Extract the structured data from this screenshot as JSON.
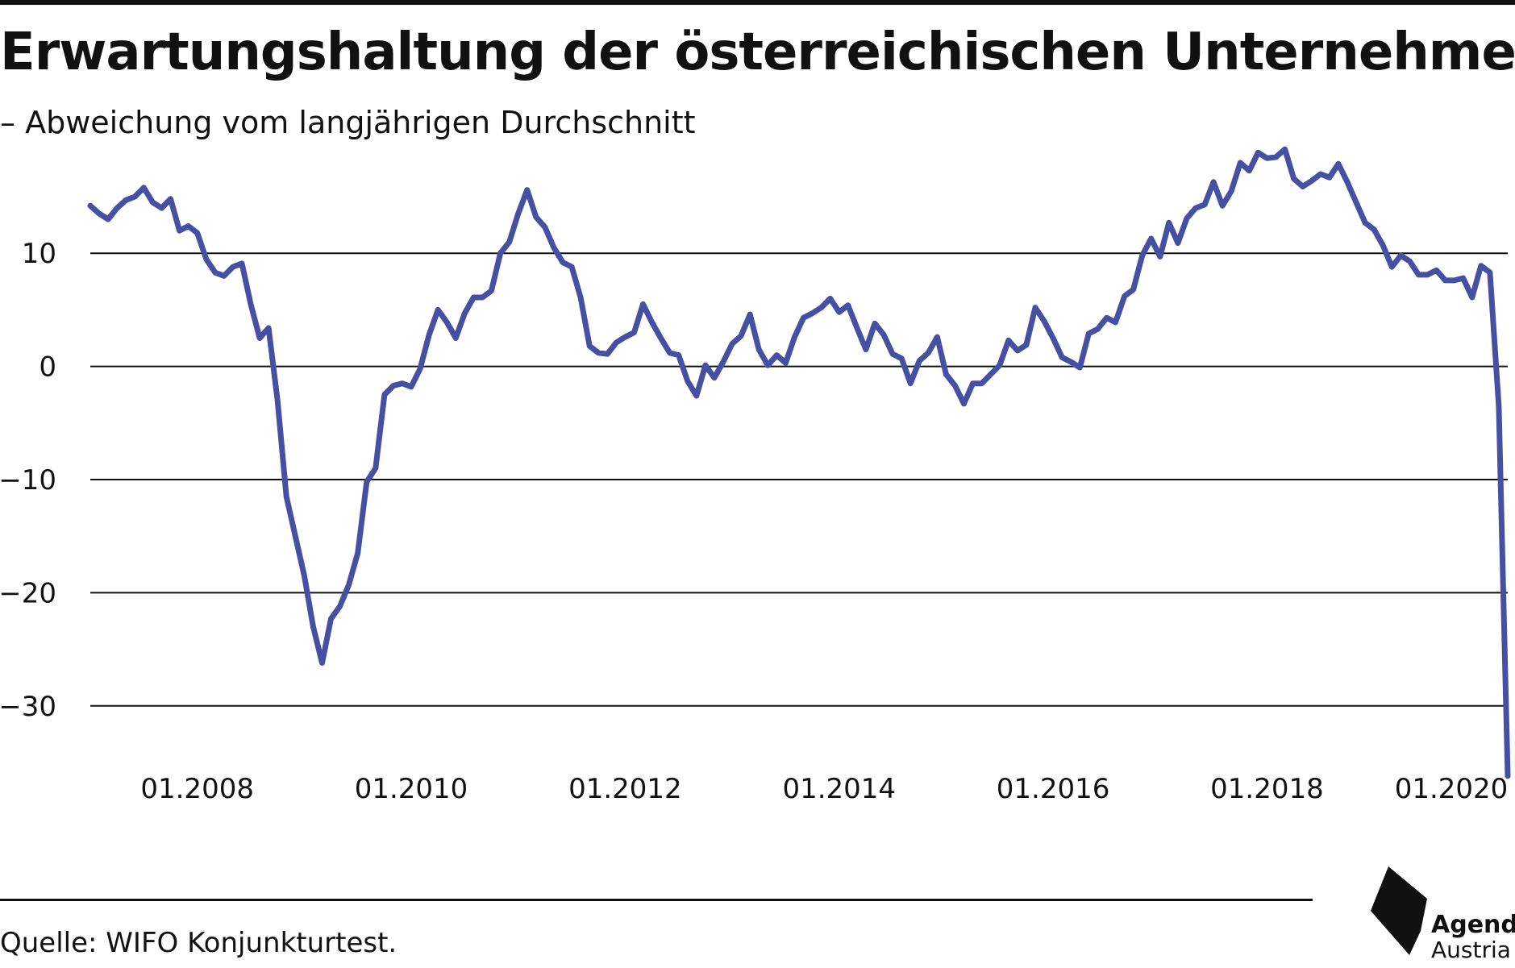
{
  "header": {
    "title": "Erwartungshaltung der österreichischen Unternehmen",
    "subtitle": "– Abweichung vom langjährigen Durchschnitt"
  },
  "footer": {
    "source": "Quelle: WIFO Konjunkturtest.",
    "logo_name": "Agenda",
    "logo_sub": "Austria"
  },
  "colors": {
    "line": "#4550a3",
    "grid": "#111111",
    "text": "#111111"
  },
  "icons": {
    "logo": "agenda-austria-logo-icon"
  },
  "chart_data": {
    "type": "line",
    "title": "Erwartungshaltung der österreichischen Unternehmen",
    "subtitle": "– Abweichung vom langjährigen Durchschnitt",
    "xlabel": "",
    "ylabel": "",
    "ylim": [
      -36,
      16
    ],
    "xlim": [
      "2007-01",
      "2020-04"
    ],
    "grid": true,
    "y_ticks": [
      {
        "value": 10,
        "label": "10"
      },
      {
        "value": 0,
        "label": "0"
      },
      {
        "value": -10,
        "label": "−10"
      },
      {
        "value": -20,
        "label": "−20"
      },
      {
        "value": -30,
        "label": "−30"
      }
    ],
    "x_ticks": [
      {
        "date": "2008-01",
        "label": "01.2008"
      },
      {
        "date": "2010-01",
        "label": "01.2010"
      },
      {
        "date": "2012-01",
        "label": "01.2012"
      },
      {
        "date": "2014-01",
        "label": "01.2014"
      },
      {
        "date": "2016-01",
        "label": "01.2016"
      },
      {
        "date": "2018-01",
        "label": "01.2018"
      },
      {
        "date": "2020-01",
        "label": "01.2020"
      }
    ],
    "series": [
      {
        "points": [
          [
            "2007-01",
            14.2
          ],
          [
            "2007-02",
            13.5
          ],
          [
            "2007-03",
            13.0
          ],
          [
            "2007-04",
            14.0
          ],
          [
            "2007-05",
            14.7
          ],
          [
            "2007-06",
            15.0
          ],
          [
            "2007-07",
            15.8
          ],
          [
            "2007-08",
            14.5
          ],
          [
            "2007-09",
            14.0
          ],
          [
            "2007-10",
            14.8
          ],
          [
            "2007-11",
            12.0
          ],
          [
            "2007-12",
            12.4
          ],
          [
            "2008-01",
            11.8
          ],
          [
            "2008-02",
            9.5
          ],
          [
            "2008-03",
            8.3
          ],
          [
            "2008-04",
            8.0
          ],
          [
            "2008-05",
            8.8
          ],
          [
            "2008-06",
            9.1
          ],
          [
            "2008-07",
            5.5
          ],
          [
            "2008-08",
            2.5
          ],
          [
            "2008-09",
            3.4
          ],
          [
            "2008-10",
            -3.0
          ],
          [
            "2008-11",
            -11.5
          ],
          [
            "2008-12",
            -15.0
          ],
          [
            "2009-01",
            -18.5
          ],
          [
            "2009-02",
            -23.0
          ],
          [
            "2009-03",
            -26.2
          ],
          [
            "2009-04",
            -22.3
          ],
          [
            "2009-05",
            -21.2
          ],
          [
            "2009-06",
            -19.3
          ],
          [
            "2009-07",
            -16.5
          ],
          [
            "2009-08",
            -10.2
          ],
          [
            "2009-09",
            -9.0
          ],
          [
            "2009-10",
            -2.5
          ],
          [
            "2009-11",
            -1.7
          ],
          [
            "2009-12",
            -1.5
          ],
          [
            "2010-01",
            -1.8
          ],
          [
            "2010-02",
            -0.2
          ],
          [
            "2010-03",
            2.8
          ],
          [
            "2010-04",
            5.0
          ],
          [
            "2010-05",
            3.9
          ],
          [
            "2010-06",
            2.5
          ],
          [
            "2010-07",
            4.7
          ],
          [
            "2010-08",
            6.1
          ],
          [
            "2010-09",
            6.1
          ],
          [
            "2010-10",
            6.7
          ],
          [
            "2010-11",
            10.0
          ],
          [
            "2010-12",
            11.0
          ],
          [
            "2011-01",
            13.5
          ],
          [
            "2011-02",
            15.6
          ],
          [
            "2011-03",
            13.2
          ],
          [
            "2011-04",
            12.3
          ],
          [
            "2011-05",
            10.5
          ],
          [
            "2011-06",
            9.2
          ],
          [
            "2011-07",
            8.8
          ],
          [
            "2011-08",
            6.1
          ],
          [
            "2011-09",
            1.8
          ],
          [
            "2011-10",
            1.2
          ],
          [
            "2011-11",
            1.1
          ],
          [
            "2011-12",
            2.1
          ],
          [
            "2012-01",
            2.6
          ],
          [
            "2012-02",
            3.0
          ],
          [
            "2012-03",
            5.5
          ],
          [
            "2012-04",
            3.9
          ],
          [
            "2012-05",
            2.5
          ],
          [
            "2012-06",
            1.2
          ],
          [
            "2012-07",
            1.0
          ],
          [
            "2012-08",
            -1.3
          ],
          [
            "2012-09",
            -2.6
          ],
          [
            "2012-10",
            0.1
          ],
          [
            "2012-11",
            -1.0
          ],
          [
            "2012-12",
            0.4
          ],
          [
            "2013-01",
            2.0
          ],
          [
            "2013-02",
            2.7
          ],
          [
            "2013-03",
            4.6
          ],
          [
            "2013-04",
            1.5
          ],
          [
            "2013-05",
            0.1
          ],
          [
            "2013-06",
            1.0
          ],
          [
            "2013-07",
            0.3
          ],
          [
            "2013-08",
            2.6
          ],
          [
            "2013-09",
            4.3
          ],
          [
            "2013-10",
            4.7
          ],
          [
            "2013-11",
            5.2
          ],
          [
            "2013-12",
            6.0
          ],
          [
            "2014-01",
            4.8
          ],
          [
            "2014-02",
            5.4
          ],
          [
            "2014-03",
            3.4
          ],
          [
            "2014-04",
            1.5
          ],
          [
            "2014-05",
            3.8
          ],
          [
            "2014-06",
            2.8
          ],
          [
            "2014-07",
            1.1
          ],
          [
            "2014-08",
            0.7
          ],
          [
            "2014-09",
            -1.5
          ],
          [
            "2014-10",
            0.5
          ],
          [
            "2014-11",
            1.2
          ],
          [
            "2014-12",
            2.6
          ],
          [
            "2015-01",
            -0.7
          ],
          [
            "2015-02",
            -1.7
          ],
          [
            "2015-03",
            -3.3
          ],
          [
            "2015-04",
            -1.5
          ],
          [
            "2015-05",
            -1.5
          ],
          [
            "2015-06",
            -0.7
          ],
          [
            "2015-07",
            0.1
          ],
          [
            "2015-08",
            2.3
          ],
          [
            "2015-09",
            1.4
          ],
          [
            "2015-10",
            1.9
          ],
          [
            "2015-11",
            5.2
          ],
          [
            "2015-12",
            4.0
          ],
          [
            "2016-01",
            2.5
          ],
          [
            "2016-02",
            0.8
          ],
          [
            "2016-03",
            0.4
          ],
          [
            "2016-04",
            -0.1
          ],
          [
            "2016-05",
            2.9
          ],
          [
            "2016-06",
            3.3
          ],
          [
            "2016-07",
            4.3
          ],
          [
            "2016-08",
            3.9
          ],
          [
            "2016-09",
            6.2
          ],
          [
            "2016-10",
            6.8
          ],
          [
            "2016-11",
            9.8
          ],
          [
            "2016-12",
            11.3
          ],
          [
            "2017-01",
            9.7
          ],
          [
            "2017-02",
            12.7
          ],
          [
            "2017-03",
            10.9
          ],
          [
            "2017-04",
            13.1
          ],
          [
            "2017-05",
            14.0
          ],
          [
            "2017-06",
            14.3
          ],
          [
            "2017-07",
            16.3
          ],
          [
            "2017-08",
            14.2
          ],
          [
            "2017-09",
            15.5
          ],
          [
            "2017-10",
            18.0
          ],
          [
            "2017-11",
            17.3
          ],
          [
            "2017-12",
            18.9
          ],
          [
            "2018-01",
            18.4
          ],
          [
            "2018-02",
            18.5
          ],
          [
            "2018-03",
            19.2
          ],
          [
            "2018-04",
            16.6
          ],
          [
            "2018-05",
            15.9
          ],
          [
            "2018-06",
            16.4
          ],
          [
            "2018-07",
            17.0
          ],
          [
            "2018-08",
            16.7
          ],
          [
            "2018-09",
            17.9
          ],
          [
            "2018-10",
            16.3
          ],
          [
            "2018-11",
            14.5
          ],
          [
            "2018-12",
            12.7
          ],
          [
            "2019-01",
            12.1
          ],
          [
            "2019-02",
            10.7
          ],
          [
            "2019-03",
            8.8
          ],
          [
            "2019-04",
            9.8
          ],
          [
            "2019-05",
            9.3
          ],
          [
            "2019-06",
            8.1
          ],
          [
            "2019-07",
            8.1
          ],
          [
            "2019-08",
            8.5
          ],
          [
            "2019-09",
            7.6
          ],
          [
            "2019-10",
            7.6
          ],
          [
            "2019-11",
            7.8
          ],
          [
            "2019-12",
            6.1
          ],
          [
            "2020-01",
            8.9
          ],
          [
            "2020-02",
            8.3
          ],
          [
            "2020-03",
            -3.5
          ],
          [
            "2020-04",
            -36.2
          ]
        ]
      }
    ]
  }
}
